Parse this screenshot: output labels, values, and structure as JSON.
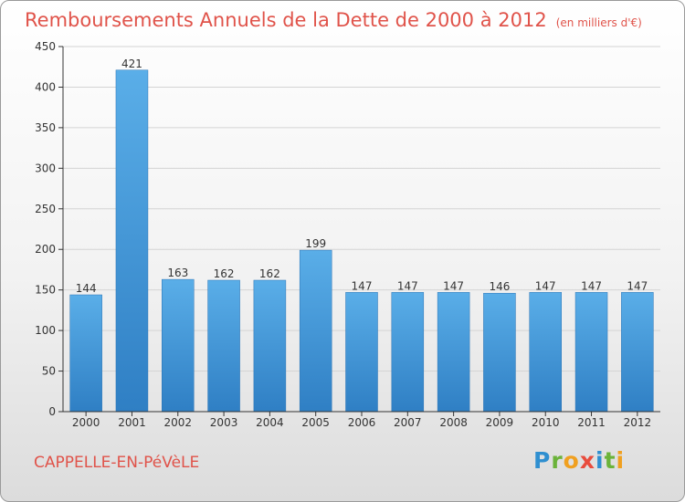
{
  "header": {
    "title": "Remboursements Annuels de la Dette de 2000 à 2012",
    "subtitle": "(en milliers d'€)"
  },
  "commune": "CAPPELLE-EN-PéVèLE",
  "brand": "Proxiti",
  "colors": {
    "title": "#e0534a",
    "bar_light": "#5aaee8",
    "bar_dark": "#2f7fc4",
    "grid": "#d4d4d4",
    "axis": "#333333"
  },
  "chart_data": {
    "type": "bar",
    "title": "Remboursements Annuels de la Dette de 2000 à 2012",
    "subtitle": "(en milliers d'€)",
    "xlabel": "",
    "ylabel": "",
    "categories": [
      "2000",
      "2001",
      "2002",
      "2003",
      "2004",
      "2005",
      "2006",
      "2007",
      "2008",
      "2009",
      "2010",
      "2011",
      "2012"
    ],
    "values": [
      144,
      421,
      163,
      162,
      162,
      199,
      147,
      147,
      147,
      146,
      147,
      147,
      147
    ],
    "ylim": [
      0,
      450
    ],
    "yticks": [
      0,
      50,
      100,
      150,
      200,
      250,
      300,
      350,
      400,
      450
    ],
    "grid": true,
    "data_labels": true
  }
}
